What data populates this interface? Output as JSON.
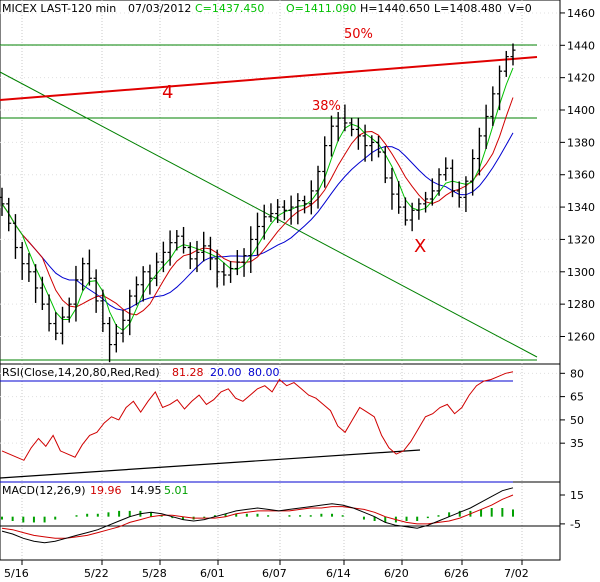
{
  "header": {
    "symbol": "MICEX LAST-120 min",
    "date": "07/03/2012",
    "close": "C=1437.450",
    "open": "O=1411.090",
    "high": "H=1440.650",
    "low": "L=1408.480",
    "volume": "V=0"
  },
  "colors": {
    "close_text": "#00c000",
    "open_text": "#00c000",
    "price_bar": "#000000",
    "ma_fast": "#00c000",
    "ma_mid": "#d00000",
    "ma_slow": "#0000d0",
    "trendline": "#e00000",
    "fib_line": "#008000",
    "rsi_line": "#d00000",
    "rsi_band": "#0000d0",
    "macd_line": "#000000",
    "signal_line": "#d00000",
    "histogram": "#00a000"
  },
  "annotations": {
    "fib50": "50%",
    "fib38": "38%",
    "wave4": "4",
    "waveX": "X"
  },
  "rsi_panel": {
    "title": "RSI(Close,14,20,80,Red,Red)",
    "value": "81.28",
    "low": "20.00",
    "high": "80.00"
  },
  "macd_panel": {
    "title": "MACD(12,26,9)",
    "macd": "19.96",
    "signal": "14.95",
    "hist": "5.01"
  },
  "chart_data": {
    "type": "candlestick",
    "x_labels": [
      "5/16",
      "5/22",
      "5/28",
      "6/01",
      "6/07",
      "6/14",
      "6/20",
      "6/26",
      "7/02"
    ],
    "price_axis_ticks": [
      1260,
      1280,
      1300,
      1320,
      1340,
      1360,
      1380,
      1400,
      1420,
      1440,
      1460
    ],
    "price_ylim": [
      1243,
      1468
    ],
    "rsi_ticks": [
      35,
      50,
      65,
      80
    ],
    "rsi_ylim": [
      10,
      86
    ],
    "macd_ticks": [
      -5,
      15
    ],
    "macd_ylim": [
      -30,
      24
    ],
    "price_closes": [
      1342,
      1330,
      1315,
      1305,
      1300,
      1290,
      1280,
      1268,
      1262,
      1272,
      1280,
      1295,
      1305,
      1296,
      1282,
      1268,
      1255,
      1262,
      1270,
      1285,
      1292,
      1300,
      1296,
      1306,
      1312,
      1318,
      1322,
      1315,
      1308,
      1312,
      1316,
      1308,
      1300,
      1298,
      1302,
      1306,
      1310,
      1320,
      1328,
      1334,
      1336,
      1340,
      1338,
      1340,
      1344,
      1342,
      1350,
      1362,
      1378,
      1390,
      1395,
      1392,
      1388,
      1384,
      1378,
      1380,
      1374,
      1358,
      1348,
      1340,
      1332,
      1338,
      1342,
      1345,
      1350,
      1360,
      1364,
      1350,
      1346,
      1356,
      1370,
      1384,
      1396,
      1410,
      1424,
      1433,
      1437
    ],
    "annotation_levels": {
      "fib50": 1441,
      "fib38": 1396,
      "green_low": 1243
    },
    "rsi_values": [
      30,
      28,
      26,
      24,
      32,
      38,
      33,
      40,
      30,
      28,
      26,
      34,
      40,
      42,
      48,
      52,
      50,
      58,
      62,
      55,
      62,
      68,
      58,
      60,
      63,
      57,
      62,
      66,
      60,
      63,
      68,
      70,
      64,
      62,
      66,
      70,
      72,
      68,
      76,
      72,
      74,
      70,
      66,
      64,
      60,
      56,
      46,
      42,
      50,
      58,
      55,
      52,
      40,
      32,
      28,
      30,
      36,
      44,
      52,
      54,
      58,
      60,
      54,
      58,
      66,
      72,
      75,
      76,
      78,
      80,
      81
    ],
    "macd_values": [
      -10,
      -12,
      -15,
      -17,
      -18,
      -17,
      -15,
      -13,
      -11,
      -9,
      -6,
      -3,
      0,
      2,
      3,
      2,
      0,
      -2,
      -3,
      -2,
      0,
      2,
      4,
      5,
      6,
      5,
      4,
      5,
      6,
      7,
      8,
      9,
      8,
      6,
      3,
      0,
      -4,
      -6,
      -7,
      -8,
      -6,
      -3,
      0,
      3,
      6,
      10,
      14,
      18,
      20
    ],
    "signal_values": [
      -8,
      -9,
      -11,
      -13,
      -14,
      -15,
      -15,
      -14,
      -13,
      -11,
      -9,
      -7,
      -4,
      -2,
      0,
      1,
      1,
      0,
      -1,
      -1,
      -1,
      0,
      2,
      3,
      4,
      4,
      4,
      4,
      5,
      6,
      6,
      7,
      7,
      6,
      5,
      3,
      0,
      -2,
      -4,
      -5,
      -5,
      -4,
      -3,
      -1,
      2,
      5,
      8,
      12,
      15
    ]
  }
}
